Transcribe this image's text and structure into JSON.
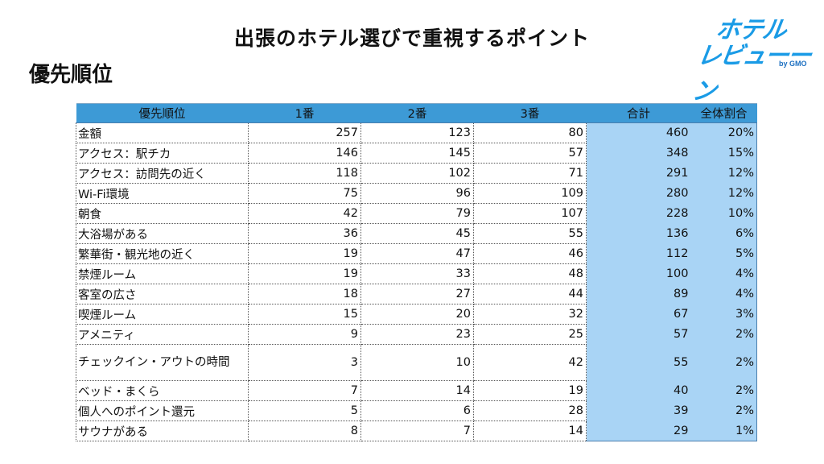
{
  "title": "出張のホテル選びで重視するポイント",
  "subtitle": "優先順位",
  "logo": {
    "line1": "ホテル",
    "line2": "レビューーン",
    "by": "by GMO"
  },
  "colors": {
    "header_bg": "#3d9ad6",
    "highlight_bg": "#a9d4f5",
    "logo": "#1a9be6"
  },
  "table": {
    "headers": [
      "優先順位",
      "1番",
      "2番",
      "3番",
      "合計",
      "全体割合"
    ],
    "rows": [
      {
        "item": "金額",
        "r1": "257",
        "r2": "123",
        "r3": "80",
        "total": "460",
        "share": "20%"
      },
      {
        "item": "アクセス：駅チカ",
        "r1": "146",
        "r2": "145",
        "r3": "57",
        "total": "348",
        "share": "15%"
      },
      {
        "item": "アクセス：訪問先の近く",
        "r1": "118",
        "r2": "102",
        "r3": "71",
        "total": "291",
        "share": "12%"
      },
      {
        "item": "Wi-Fi環境",
        "r1": "75",
        "r2": "96",
        "r3": "109",
        "total": "280",
        "share": "12%"
      },
      {
        "item": "朝食",
        "r1": "42",
        "r2": "79",
        "r3": "107",
        "total": "228",
        "share": "10%"
      },
      {
        "item": "大浴場がある",
        "r1": "36",
        "r2": "45",
        "r3": "55",
        "total": "136",
        "share": "6%"
      },
      {
        "item": "繁華街・観光地の近く",
        "r1": "19",
        "r2": "47",
        "r3": "46",
        "total": "112",
        "share": "5%"
      },
      {
        "item": "禁煙ルーム",
        "r1": "19",
        "r2": "33",
        "r3": "48",
        "total": "100",
        "share": "4%"
      },
      {
        "item": "客室の広さ",
        "r1": "18",
        "r2": "27",
        "r3": "44",
        "total": "89",
        "share": "4%"
      },
      {
        "item": "喫煙ルーム",
        "r1": "15",
        "r2": "20",
        "r3": "32",
        "total": "67",
        "share": "3%"
      },
      {
        "item": "アメニティ",
        "r1": "9",
        "r2": "23",
        "r3": "25",
        "total": "57",
        "share": "2%"
      },
      {
        "item": "チェックイン・アウトの時間",
        "r1": "3",
        "r2": "10",
        "r3": "42",
        "total": "55",
        "share": "2%"
      },
      {
        "item": "ベッド・まくら",
        "r1": "7",
        "r2": "14",
        "r3": "19",
        "total": "40",
        "share": "2%"
      },
      {
        "item": "個人へのポイント還元",
        "r1": "5",
        "r2": "6",
        "r3": "28",
        "total": "39",
        "share": "2%"
      },
      {
        "item": "サウナがある",
        "r1": "8",
        "r2": "7",
        "r3": "14",
        "total": "29",
        "share": "1%"
      }
    ]
  }
}
